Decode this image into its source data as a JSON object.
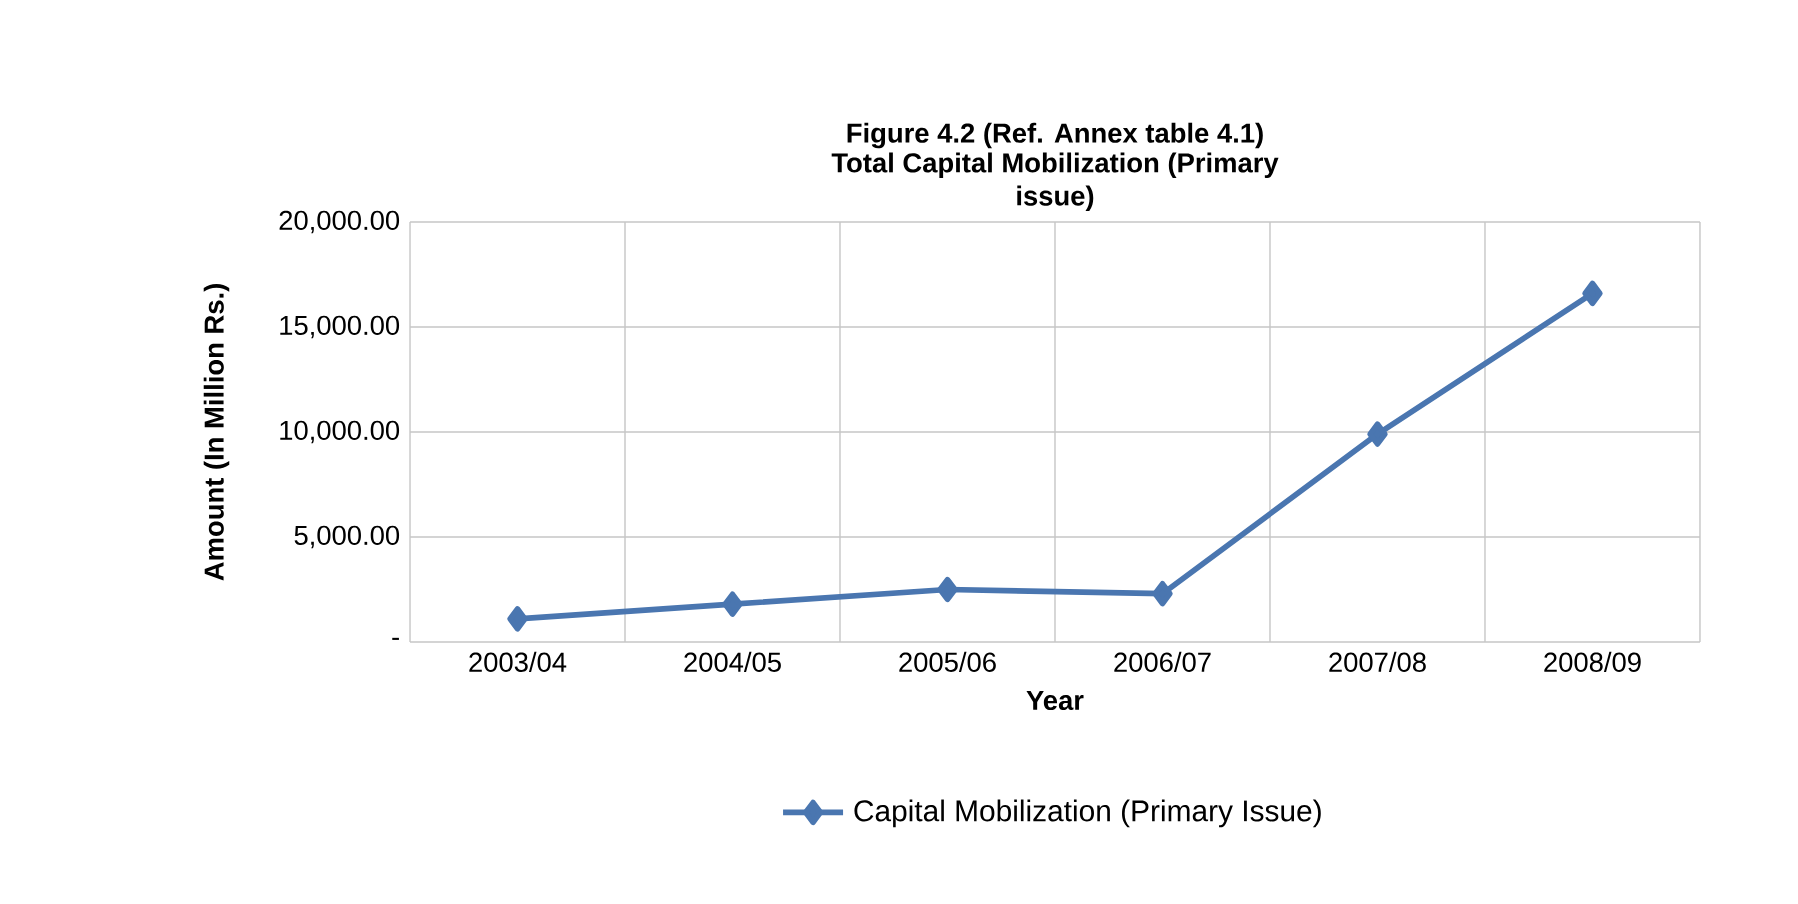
{
  "chart_data": {
    "type": "line",
    "title": "Figure 4.2 (Ref. Annex table 4.1)",
    "subtitle": "Total Capital Mobilization (Primary issue)",
    "xlabel": "Year",
    "ylabel": "Amount (In Million Rs.)",
    "categories": [
      "2003/04",
      "2004/05",
      "2005/06",
      "2006/07",
      "2007/08",
      "2008/09"
    ],
    "series": [
      {
        "name": "Capital Mobilization (Primary Issue)",
        "color": "#4a76b0",
        "values": [
          1100,
          1800,
          2500,
          2300,
          9900,
          16600
        ]
      }
    ],
    "ylim": [
      0,
      20000
    ],
    "yticks": [
      {
        "value": 0,
        "label": "-"
      },
      {
        "value": 5000,
        "label": "5,000.00"
      },
      {
        "value": 10000,
        "label": "10,000.00"
      },
      {
        "value": 15000,
        "label": "15,000.00"
      },
      {
        "value": 20000,
        "label": "20,000.00"
      }
    ],
    "grid": true,
    "legend": "bottom",
    "marker": "diamond",
    "line_style": "solid"
  }
}
